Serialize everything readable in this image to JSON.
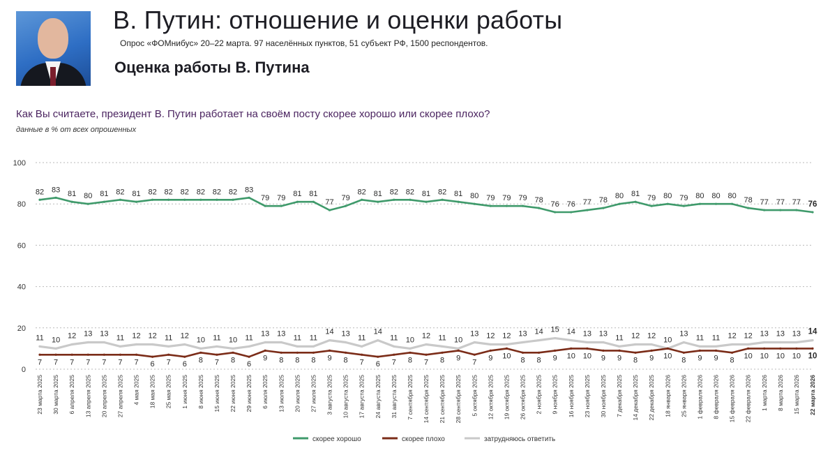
{
  "header": {
    "title": "В. Путин: отношение и оценки работы",
    "subtitle": "Опрос «ФОМнибус» 20–22 марта. 97 населённых пунктов, 51 субъект РФ, 1500 респондентов.",
    "section_title": "Оценка работы В. Путина",
    "question": "Как Вы считаете, президент В. Путин работает на своём посту скорее хорошо или скорее плохо?",
    "note": "данные в % от всех опрошенных"
  },
  "chart_data": {
    "type": "line",
    "title": "Оценка работы В. Путина",
    "ylim": [
      0,
      100
    ],
    "yticks": [
      0,
      20,
      40,
      60,
      80,
      100
    ],
    "categories": [
      "23 марта 2025",
      "30 марта 2025",
      "6 апреля 2025",
      "13 апреля 2025",
      "20 апреля 2025",
      "27 апреля 2025",
      "4 мая 2025",
      "18 мая 2025",
      "25 мая 2025",
      "1 июня 2025",
      "8 июня 2025",
      "15 июня 2025",
      "22 июня 2025",
      "29 июня 2025",
      "6 июля 2025",
      "13 июля 2025",
      "20 июля 2025",
      "27 июля 2025",
      "3 августа 2025",
      "10 августа 2025",
      "17 августа 2025",
      "24 августа 2025",
      "31 августа 2025",
      "7 сентября 2025",
      "14 сентября 2025",
      "21 сентября 2025",
      "28 сентября 2025",
      "5 октября 2025",
      "12 октября 2025",
      "19 октября 2025",
      "26 октября 2025",
      "2 ноября 2025",
      "9 ноября 2025",
      "16 ноября 2025",
      "23 ноября 2025",
      "30 ноября 2025",
      "7 декабря 2025",
      "14 декабря 2025",
      "22 декабря 2025",
      "18 января 2026",
      "25 января 2026",
      "1 февраля 2026",
      "8 февраля 2026",
      "15 февраля 2026",
      "22 февраля 2026",
      "1 марта 2026",
      "8 марта 2026",
      "15 марта 2026",
      "22 марта 2026"
    ],
    "series": [
      {
        "name": "скорее хорошо",
        "color": "#3f9a6b",
        "values": [
          82,
          83,
          81,
          80,
          81,
          82,
          81,
          82,
          82,
          82,
          82,
          82,
          82,
          83,
          79,
          79,
          81,
          81,
          77,
          79,
          82,
          81,
          82,
          82,
          81,
          82,
          81,
          80,
          79,
          79,
          79,
          78,
          76,
          76,
          77,
          78,
          80,
          81,
          79,
          80,
          79,
          80,
          80,
          80,
          78,
          77,
          77,
          77,
          76
        ]
      },
      {
        "name": "скорее плохо",
        "color": "#7b2c18",
        "values": [
          7,
          7,
          7,
          7,
          7,
          7,
          7,
          6,
          7,
          6,
          8,
          7,
          8,
          6,
          9,
          8,
          8,
          8,
          9,
          8,
          7,
          6,
          7,
          8,
          7,
          8,
          9,
          7,
          9,
          10,
          8,
          8,
          9,
          10,
          10,
          9,
          9,
          8,
          9,
          10,
          8,
          9,
          9,
          8,
          10,
          10,
          10,
          10,
          10
        ]
      },
      {
        "name": "затрудняюсь ответить",
        "color": "#c9c9c9",
        "values": [
          11,
          10,
          12,
          13,
          13,
          11,
          12,
          12,
          11,
          12,
          10,
          11,
          10,
          11,
          13,
          13,
          11,
          11,
          14,
          13,
          11,
          14,
          11,
          10,
          12,
          11,
          10,
          13,
          12,
          12,
          13,
          14,
          15,
          14,
          13,
          13,
          11,
          12,
          12,
          10,
          13,
          11,
          11,
          12,
          12,
          13,
          13,
          13,
          14
        ]
      }
    ]
  }
}
